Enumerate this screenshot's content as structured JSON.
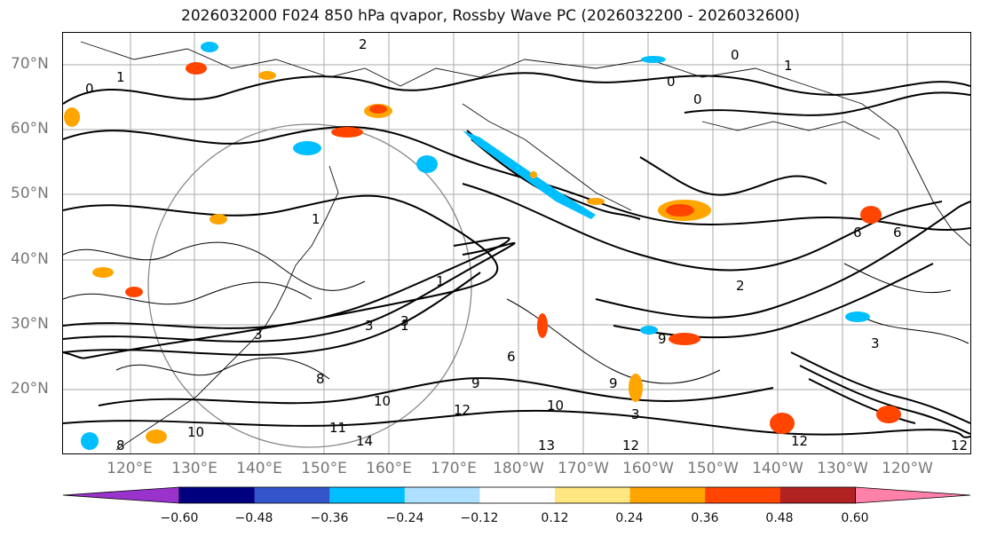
{
  "title": "2026032000 F024 850 hPa qvapor, Rossby Wave PC (2026032200 - 2026032600)",
  "lat_ticks": [
    "70°N",
    "60°N",
    "50°N",
    "40°N",
    "30°N",
    "20°N"
  ],
  "lon_ticks": [
    "120°E",
    "130°E",
    "140°E",
    "150°E",
    "160°E",
    "170°E",
    "180°W",
    "170°W",
    "160°W",
    "150°W",
    "140°W",
    "130°W",
    "120°W"
  ],
  "colorbar": {
    "colors": [
      "#9933cc",
      "#000080",
      "#3355cc",
      "#00bfff",
      "#aee0ff",
      "#ffffff",
      "#ffe680",
      "#ffa500",
      "#ff4500",
      "#b22222",
      "#ff80a8"
    ],
    "ticks": [
      "−0.60",
      "−0.48",
      "−0.36",
      "−0.24",
      "−0.12",
      "0.12",
      "0.24",
      "0.36",
      "0.48",
      "0.60"
    ]
  },
  "contour_labels": [
    "2",
    "1",
    "0",
    "0",
    "1",
    "0",
    "0",
    "1",
    "2",
    "6",
    "3",
    "1",
    "1",
    "3",
    "3",
    "9",
    "10",
    "12",
    "11",
    "14",
    "13",
    "12",
    "8",
    "9",
    "10",
    "3",
    "6",
    "3",
    "12",
    "9",
    "10",
    "6",
    "12",
    "8"
  ]
}
